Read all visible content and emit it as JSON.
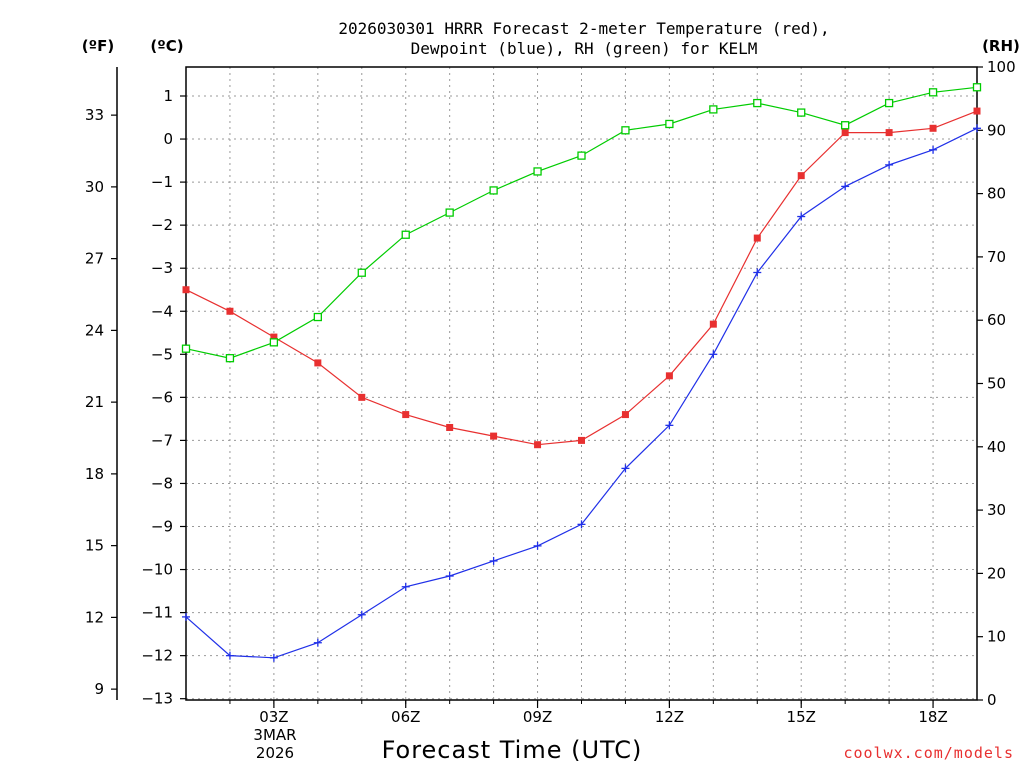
{
  "chart_data": {
    "type": "line",
    "title": [
      "2026030301 HRRR Forecast 2-meter Temperature (red),",
      "Dewpoint (blue), RH (green) for KELM"
    ],
    "xlabel": "Forecast Time (UTC)",
    "credit": "coolwx.com/models",
    "date_label": [
      "3MAR",
      "2026"
    ],
    "unit_labels": {
      "fahrenheit": "(ºF)",
      "celsius": "(ºC)",
      "rh": "(RH)"
    },
    "colors": {
      "temperature": "#e83030",
      "dewpoint": "#2030e8",
      "rh": "#00cc00",
      "grid": "#999999",
      "credit": "#e83030"
    },
    "x": [
      1,
      2,
      3,
      4,
      5,
      6,
      7,
      8,
      9,
      10,
      11,
      12,
      13,
      14,
      15,
      16,
      17,
      18,
      19
    ],
    "xlim": [
      1,
      19
    ],
    "x_ticks": [
      {
        "x": 3,
        "label": "03Z"
      },
      {
        "x": 6,
        "label": "06Z"
      },
      {
        "x": 9,
        "label": "09Z"
      },
      {
        "x": 12,
        "label": "12Z"
      },
      {
        "x": 15,
        "label": "15Z"
      },
      {
        "x": 18,
        "label": "18Z"
      }
    ],
    "ylim_celsius": [
      -13,
      1.8
    ],
    "y_ticks_celsius": [
      "1",
      "0",
      "−1",
      "−2",
      "−3",
      "−4",
      "−5",
      "−6",
      "−7",
      "−8",
      "−9",
      "−10",
      "−11",
      "−12",
      "−13"
    ],
    "y_ticks_fahrenheit": [
      "33",
      "30",
      "27",
      "24",
      "21",
      "18",
      "15",
      "12",
      "9"
    ],
    "ylim_rh": [
      0,
      100
    ],
    "y_ticks_rh": [
      "100",
      "90",
      "80",
      "70",
      "60",
      "50",
      "40",
      "30",
      "20",
      "10",
      "0"
    ],
    "series": [
      {
        "name": "Temperature",
        "unit": "C",
        "marker": "filled-square",
        "values": [
          -3.5,
          -4.0,
          -4.6,
          -5.2,
          -6.0,
          -6.4,
          -6.7,
          -6.9,
          -7.1,
          -7.0,
          -6.4,
          -5.5,
          -4.3,
          -2.3,
          -0.85,
          0.15,
          0.15,
          0.25,
          0.65
        ]
      },
      {
        "name": "Dewpoint",
        "unit": "C",
        "marker": "plus",
        "values": [
          -11.1,
          -12.0,
          -12.05,
          -11.7,
          -11.05,
          -10.4,
          -10.15,
          -9.8,
          -9.45,
          -8.95,
          -7.65,
          -6.65,
          -5.0,
          -3.1,
          -1.8,
          -1.1,
          -0.6,
          -0.25,
          0.25
        ]
      },
      {
        "name": "RH",
        "unit": "%",
        "marker": "open-square",
        "values": [
          55.5,
          54.0,
          56.5,
          60.5,
          67.5,
          73.5,
          77.0,
          80.5,
          83.5,
          86.0,
          90.0,
          91.0,
          93.3,
          94.3,
          92.8,
          90.8,
          94.3,
          96.0,
          96.8
        ]
      }
    ]
  }
}
